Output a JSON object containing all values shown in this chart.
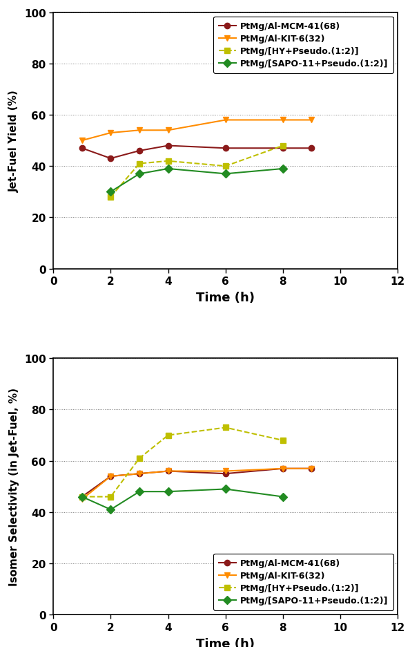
{
  "plot1": {
    "ylabel": "Jet-Fuel Yield (%)",
    "xlabel": "Time (h)",
    "xlim": [
      0,
      12
    ],
    "ylim": [
      0,
      100
    ],
    "xticks": [
      0,
      2,
      4,
      6,
      8,
      10,
      12
    ],
    "yticks": [
      0,
      20,
      40,
      60,
      80,
      100
    ],
    "grid_y": [
      20,
      40,
      60,
      80,
      100
    ],
    "series": [
      {
        "label": "PtMg/Al-MCM-41(68)",
        "x": [
          1,
          2,
          3,
          4,
          6,
          8,
          9
        ],
        "y": [
          47,
          43,
          46,
          48,
          47,
          47,
          47
        ],
        "color": "#8B1A1A",
        "marker": "o",
        "linestyle": "-",
        "markersize": 6
      },
      {
        "label": "PtMg/Al-KIT-6(32)",
        "x": [
          1,
          2,
          3,
          4,
          6,
          8,
          9
        ],
        "y": [
          50,
          53,
          54,
          54,
          58,
          58,
          58
        ],
        "color": "#FF8C00",
        "marker": "v",
        "linestyle": "-",
        "markersize": 6
      },
      {
        "label": "PtMg/[HY+Pseudo.(1:2)]",
        "x": [
          2,
          3,
          4,
          6,
          8
        ],
        "y": [
          28,
          41,
          42,
          40,
          48
        ],
        "color": "#BFBF00",
        "marker": "s",
        "linestyle": "--",
        "markersize": 6
      },
      {
        "label": "PtMg/[SAPO-11+Pseudo.(1:2)]",
        "x": [
          2,
          3,
          4,
          6,
          8
        ],
        "y": [
          30,
          37,
          39,
          37,
          39
        ],
        "color": "#228B22",
        "marker": "D",
        "linestyle": "-",
        "markersize": 6
      }
    ],
    "legend_loc": "upper right"
  },
  "plot2": {
    "ylabel": "Isomer Selectivity (in Jet-Fuel, %)",
    "xlabel": "Time (h)",
    "xlim": [
      0,
      12
    ],
    "ylim": [
      0,
      100
    ],
    "xticks": [
      0,
      2,
      4,
      6,
      8,
      10,
      12
    ],
    "yticks": [
      0,
      20,
      40,
      60,
      80,
      100
    ],
    "grid_y": [
      20,
      40,
      60,
      80,
      100
    ],
    "series": [
      {
        "label": "PtMg/Al-MCM-41(68)",
        "x": [
          1,
          2,
          3,
          4,
          6,
          8,
          9
        ],
        "y": [
          46,
          54,
          55,
          56,
          55,
          57,
          57
        ],
        "color": "#8B1A1A",
        "marker": "o",
        "linestyle": "-",
        "markersize": 6
      },
      {
        "label": "PtMg/Al-KIT-6(32)",
        "x": [
          1,
          2,
          3,
          4,
          6,
          8,
          9
        ],
        "y": [
          45,
          54,
          55,
          56,
          56,
          57,
          57
        ],
        "color": "#FF8C00",
        "marker": "v",
        "linestyle": "-",
        "markersize": 6
      },
      {
        "label": "PtMg/[HY+Pseudo.(1:2)]",
        "x": [
          1,
          2,
          3,
          4,
          6,
          8
        ],
        "y": [
          46,
          46,
          61,
          70,
          73,
          68
        ],
        "color": "#BFBF00",
        "marker": "s",
        "linestyle": "--",
        "markersize": 6
      },
      {
        "label": "PtMg/[SAPO-11+Pseudo.(1:2)]",
        "x": [
          1,
          2,
          3,
          4,
          6,
          8
        ],
        "y": [
          46,
          41,
          48,
          48,
          49,
          46
        ],
        "color": "#228B22",
        "marker": "D",
        "linestyle": "-",
        "markersize": 6
      }
    ],
    "legend_loc": "lower right"
  },
  "tick_fontsize": 11,
  "label_fontsize": 13,
  "ylabel_fontsize": 11,
  "legend_fontsize": 9,
  "line_width": 1.5,
  "figure_bg": "#ffffff",
  "grid_color": "#808080",
  "grid_linewidth": 0.7,
  "spine_linewidth": 1.2
}
